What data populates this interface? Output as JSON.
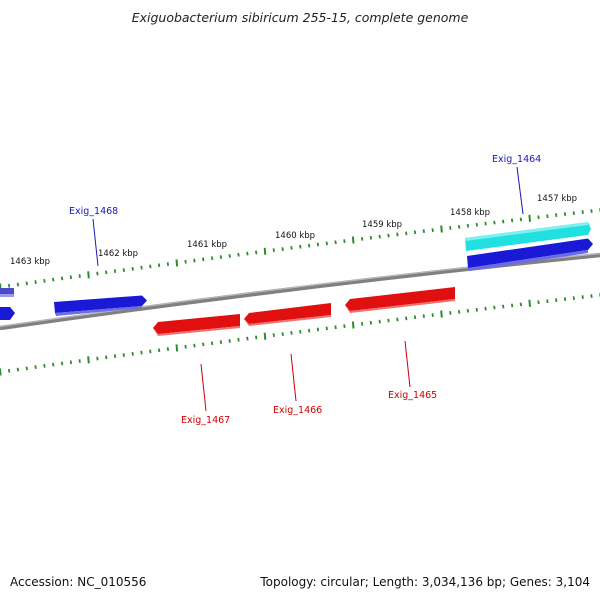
{
  "title": "Exiguobacterium sibiricum 255-15, complete genome",
  "footer": {
    "accession": "Accession: NC_010556",
    "summary": "Topology: circular; Length: 3,034,136 bp; Genes: 3,104"
  },
  "colors": {
    "backbone": "#808080",
    "tick": "#2e8b2e",
    "forward_gene": "#1a1ad6",
    "forward_gene_light": "#5a7be8",
    "cyan_gene": "#22dddd",
    "reverse_gene": "#e01010",
    "forward_label": "#1a1ab4",
    "reverse_label": "#cc0000"
  },
  "tick_labels": [
    {
      "text": "1463 kbp"
    },
    {
      "text": "1462 kbp"
    },
    {
      "text": "1461 kbp"
    },
    {
      "text": "1460 kbp"
    },
    {
      "text": "1459 kbp"
    },
    {
      "text": "1458 kbp"
    },
    {
      "text": "1457 kbp"
    }
  ],
  "gene_labels": [
    {
      "text": "Exig_1468",
      "strand": "forward"
    },
    {
      "text": "Exig_1464",
      "strand": "forward"
    },
    {
      "text": "Exig_1467",
      "strand": "reverse"
    },
    {
      "text": "Exig_1466",
      "strand": "reverse"
    },
    {
      "text": "Exig_1465",
      "strand": "reverse"
    }
  ]
}
